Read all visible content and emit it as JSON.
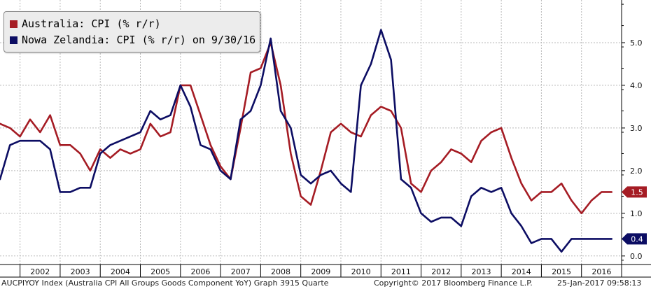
{
  "legend": {
    "au_label": "Australia: CPI (% r/r)",
    "nz_label": "Nowa Zelandia: CPI (% r/r) on 9/30/16"
  },
  "footer": {
    "index_text": "AUCPIYOY Index (Australia CPI All Groups Goods Component YoY) Graph 3915  Quarte",
    "copyright": "Copyright© 2017 Bloomberg Finance L.P.",
    "timestamp": "25-Jan-2017 09:58:13"
  },
  "colors": {
    "australia": "#a51c24",
    "new_zealand": "#0c0d63",
    "grid": "#b8b8b8",
    "axis": "#000000"
  },
  "chart_data": {
    "type": "line",
    "xlim": [
      2001.5,
      2017.0
    ],
    "ylim": [
      -0.2,
      6.0
    ],
    "y_ticks": [
      0.0,
      1.0,
      2.0,
      3.0,
      4.0,
      5.0
    ],
    "y_tick_labels": [
      "0.0",
      "1.0",
      "2.0",
      "3.0",
      "4.0",
      "5.0"
    ],
    "x_tick_labels": [
      "2002",
      "2003",
      "2004",
      "2005",
      "2006",
      "2007",
      "2008",
      "2009",
      "2010",
      "2011",
      "2012",
      "2013",
      "2014",
      "2015",
      "2016"
    ],
    "grid": true,
    "legend_position": "top-left",
    "series": [
      {
        "name": "Australia: CPI (% r/r)",
        "color": "#a51c24",
        "last_value_label": "1.5",
        "x": [
          2001.5,
          2001.75,
          2002.0,
          2002.25,
          2002.5,
          2002.75,
          2003.0,
          2003.25,
          2003.5,
          2003.75,
          2004.0,
          2004.25,
          2004.5,
          2004.75,
          2005.0,
          2005.25,
          2005.5,
          2005.75,
          2006.0,
          2006.25,
          2006.5,
          2006.75,
          2007.0,
          2007.25,
          2007.5,
          2007.75,
          2008.0,
          2008.25,
          2008.5,
          2008.75,
          2009.0,
          2009.25,
          2009.5,
          2009.75,
          2010.0,
          2010.25,
          2010.5,
          2010.75,
          2011.0,
          2011.25,
          2011.5,
          2011.75,
          2012.0,
          2012.25,
          2012.5,
          2012.75,
          2013.0,
          2013.25,
          2013.5,
          2013.75,
          2014.0,
          2014.25,
          2014.5,
          2014.75,
          2015.0,
          2015.25,
          2015.5,
          2015.75,
          2016.0,
          2016.25,
          2016.5,
          2016.75
        ],
        "values": [
          3.1,
          3.0,
          2.8,
          3.2,
          2.9,
          3.3,
          2.6,
          2.6,
          2.4,
          2.0,
          2.5,
          2.3,
          2.5,
          2.4,
          2.5,
          3.1,
          2.8,
          2.9,
          4.0,
          4.0,
          3.3,
          2.6,
          2.1,
          1.8,
          3.0,
          4.3,
          4.4,
          5.0,
          4.0,
          2.4,
          1.4,
          1.2,
          2.0,
          2.9,
          3.1,
          2.9,
          2.8,
          3.3,
          3.5,
          3.4,
          3.0,
          1.7,
          1.5,
          2.0,
          2.2,
          2.5,
          2.4,
          2.2,
          2.7,
          2.9,
          3.0,
          2.3,
          1.7,
          1.3,
          1.5,
          1.5,
          1.7,
          1.3,
          1.0,
          1.3,
          1.5,
          1.5
        ]
      },
      {
        "name": "Nowa Zelandia: CPI (% r/r) on 9/30/16",
        "color": "#0c0d63",
        "last_value_label": "0.4",
        "x": [
          2001.5,
          2001.75,
          2002.0,
          2002.25,
          2002.5,
          2002.75,
          2003.0,
          2003.25,
          2003.5,
          2003.75,
          2004.0,
          2004.25,
          2004.5,
          2004.75,
          2005.0,
          2005.25,
          2005.5,
          2005.75,
          2006.0,
          2006.25,
          2006.5,
          2006.75,
          2007.0,
          2007.25,
          2007.5,
          2007.75,
          2008.0,
          2008.25,
          2008.5,
          2008.75,
          2009.0,
          2009.25,
          2009.5,
          2009.75,
          2010.0,
          2010.25,
          2010.5,
          2010.75,
          2011.0,
          2011.25,
          2011.5,
          2011.75,
          2012.0,
          2012.25,
          2012.5,
          2012.75,
          2013.0,
          2013.25,
          2013.5,
          2013.75,
          2014.0,
          2014.25,
          2014.5,
          2014.75,
          2015.0,
          2015.25,
          2015.5,
          2015.75,
          2016.0,
          2016.25,
          2016.5,
          2016.75
        ],
        "values": [
          1.8,
          2.6,
          2.7,
          2.7,
          2.7,
          2.5,
          1.5,
          1.5,
          1.6,
          1.6,
          2.4,
          2.6,
          2.7,
          2.8,
          2.9,
          3.4,
          3.2,
          3.3,
          4.0,
          3.5,
          2.6,
          2.5,
          2.0,
          1.8,
          3.2,
          3.4,
          4.0,
          5.1,
          3.4,
          3.0,
          1.9,
          1.7,
          1.9,
          2.0,
          1.7,
          1.5,
          4.0,
          4.5,
          5.3,
          4.6,
          1.8,
          1.6,
          1.0,
          0.8,
          0.9,
          0.9,
          0.7,
          1.4,
          1.6,
          1.5,
          1.6,
          1.0,
          0.7,
          0.3,
          0.4,
          0.4,
          0.1,
          0.4,
          0.4,
          0.4,
          0.4,
          0.4
        ]
      }
    ]
  }
}
